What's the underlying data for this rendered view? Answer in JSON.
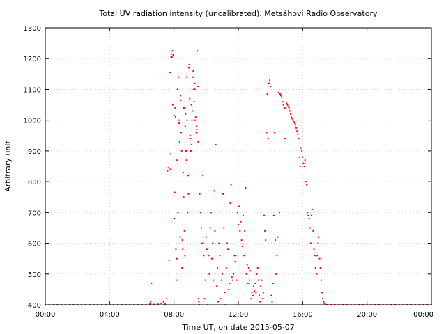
{
  "chart_data": {
    "type": "scatter",
    "title": "Total UV radiation intensity (uncalibrated). Metsähovi Radio Observatory",
    "xlabel": "Time UT, on date 2015-05-07",
    "ylabel": "Arbitrary unit",
    "xlim": [
      0,
      24
    ],
    "ylim": [
      400,
      1300
    ],
    "x_ticks": [
      {
        "value": 0,
        "label": "00:00"
      },
      {
        "value": 4,
        "label": "04:00"
      },
      {
        "value": 8,
        "label": "08:00"
      },
      {
        "value": 12,
        "label": "12:00"
      },
      {
        "value": 16,
        "label": "16:00"
      },
      {
        "value": 20,
        "label": "20:00"
      },
      {
        "value": 24,
        "label": "00:00"
      }
    ],
    "y_ticks": [
      400,
      500,
      600,
      700,
      800,
      900,
      1000,
      1100,
      1200,
      1300
    ],
    "grid": true,
    "marker_color": "#ff0000",
    "series": [
      {
        "points": [
          [
            0.0,
            400
          ],
          [
            0.25,
            400
          ],
          [
            0.5,
            400
          ],
          [
            0.75,
            400
          ],
          [
            1.0,
            400
          ],
          [
            1.25,
            400
          ],
          [
            1.5,
            400
          ],
          [
            1.75,
            400
          ],
          [
            2.0,
            400
          ],
          [
            2.25,
            400
          ],
          [
            2.5,
            400
          ],
          [
            2.75,
            400
          ],
          [
            3.0,
            400
          ],
          [
            3.25,
            400
          ],
          [
            3.5,
            400
          ],
          [
            3.75,
            400
          ],
          [
            4.0,
            400
          ],
          [
            4.25,
            400
          ],
          [
            4.5,
            400
          ],
          [
            4.75,
            400
          ],
          [
            5.0,
            400
          ],
          [
            5.25,
            400
          ],
          [
            5.5,
            400
          ],
          [
            5.75,
            400
          ],
          [
            6.0,
            400
          ],
          [
            6.25,
            400
          ],
          [
            6.5,
            402
          ],
          [
            6.55,
            410
          ],
          [
            6.6,
            470
          ],
          [
            6.75,
            401
          ],
          [
            7.0,
            402
          ],
          [
            7.2,
            405
          ],
          [
            7.35,
            410
          ],
          [
            7.45,
            402
          ],
          [
            7.55,
            420
          ],
          [
            7.6,
            835
          ],
          [
            7.65,
            845
          ],
          [
            7.7,
            545
          ],
          [
            7.75,
            1155
          ],
          [
            7.78,
            840
          ],
          [
            7.8,
            890
          ],
          [
            7.82,
            1205
          ],
          [
            7.85,
            1215
          ],
          [
            7.87,
            1205
          ],
          [
            7.9,
            1225
          ],
          [
            7.92,
            1050
          ],
          [
            7.95,
            1210
          ],
          [
            7.97,
            1212
          ],
          [
            8.0,
            1015
          ],
          [
            8.02,
            680
          ],
          [
            8.05,
            765
          ],
          [
            8.08,
            1040
          ],
          [
            8.1,
            1010
          ],
          [
            8.12,
            580
          ],
          [
            8.15,
            480
          ],
          [
            8.18,
            550
          ],
          [
            8.2,
            870
          ],
          [
            8.22,
            1100
          ],
          [
            8.25,
            700
          ],
          [
            8.28,
            1140
          ],
          [
            8.3,
            1000
          ],
          [
            8.32,
            990
          ],
          [
            8.35,
            930
          ],
          [
            8.38,
            620
          ],
          [
            8.4,
            1080
          ],
          [
            8.42,
            1065
          ],
          [
            8.45,
            960
          ],
          [
            8.48,
            900
          ],
          [
            8.5,
            520
          ],
          [
            8.52,
            610
          ],
          [
            8.55,
            580
          ],
          [
            8.58,
            830
          ],
          [
            8.6,
            750
          ],
          [
            8.62,
            1040
          ],
          [
            8.65,
            640
          ],
          [
            8.68,
            560
          ],
          [
            8.7,
            980
          ],
          [
            8.72,
            1020
          ],
          [
            8.75,
            900
          ],
          [
            8.78,
            870
          ],
          [
            8.8,
            1140
          ],
          [
            8.82,
            1000
          ],
          [
            8.85,
            700
          ],
          [
            8.88,
            820
          ],
          [
            8.9,
            760
          ],
          [
            8.92,
            1170
          ],
          [
            8.95,
            1180
          ],
          [
            8.98,
            1070
          ],
          [
            9.0,
            950
          ],
          [
            9.02,
            940
          ],
          [
            9.05,
            900
          ],
          [
            9.08,
            1050
          ],
          [
            9.1,
            920
          ],
          [
            9.12,
            1000
          ],
          [
            9.15,
            1030
          ],
          [
            9.18,
            1140
          ],
          [
            9.2,
            1160
          ],
          [
            9.22,
            1100
          ],
          [
            9.25,
            1060
          ],
          [
            9.28,
            1120
          ],
          [
            9.3,
            1100
          ],
          [
            9.32,
            1000
          ],
          [
            9.35,
            1010
          ],
          [
            9.38,
            960
          ],
          [
            9.4,
            980
          ],
          [
            9.42,
            970
          ],
          [
            9.45,
            1225
          ],
          [
            9.48,
            1110
          ],
          [
            9.5,
            930
          ],
          [
            9.52,
            420
          ],
          [
            9.55,
            410
          ],
          [
            9.58,
            400
          ],
          [
            9.6,
            760
          ],
          [
            9.65,
            700
          ],
          [
            9.7,
            650
          ],
          [
            9.75,
            600
          ],
          [
            9.8,
            820
          ],
          [
            9.85,
            560
          ],
          [
            9.9,
            420
          ],
          [
            9.95,
            480
          ],
          [
            10.0,
            620
          ],
          [
            10.05,
            580
          ],
          [
            10.1,
            400
          ],
          [
            10.15,
            560
          ],
          [
            10.2,
            500
          ],
          [
            10.25,
            650
          ],
          [
            10.3,
            700
          ],
          [
            10.35,
            550
          ],
          [
            10.4,
            600
          ],
          [
            10.45,
            480
          ],
          [
            10.5,
            770
          ],
          [
            10.55,
            640
          ],
          [
            10.6,
            920
          ],
          [
            10.65,
            460
          ],
          [
            10.7,
            520
          ],
          [
            10.75,
            410
          ],
          [
            10.8,
            600
          ],
          [
            10.85,
            560
          ],
          [
            10.9,
            420
          ],
          [
            10.95,
            480
          ],
          [
            11.0,
            500
          ],
          [
            11.05,
            760
          ],
          [
            11.1,
            650
          ],
          [
            11.15,
            440
          ],
          [
            11.2,
            400
          ],
          [
            11.25,
            520
          ],
          [
            11.3,
            600
          ],
          [
            11.35,
            580
          ],
          [
            11.4,
            450
          ],
          [
            11.45,
            470
          ],
          [
            11.5,
            730
          ],
          [
            11.55,
            790
          ],
          [
            11.6,
            490
          ],
          [
            11.65,
            480
          ],
          [
            11.7,
            500
          ],
          [
            11.75,
            560
          ],
          [
            11.8,
            540
          ],
          [
            11.85,
            560
          ],
          [
            11.9,
            480
          ],
          [
            11.95,
            700
          ],
          [
            12.0,
            660
          ],
          [
            12.05,
            720
          ],
          [
            12.1,
            640
          ],
          [
            12.15,
            670
          ],
          [
            12.2,
            610
          ],
          [
            12.25,
            590
          ],
          [
            12.3,
            690
          ],
          [
            12.35,
            560
          ],
          [
            12.4,
            640
          ],
          [
            12.45,
            780
          ],
          [
            12.5,
            500
          ],
          [
            12.55,
            530
          ],
          [
            12.6,
            470
          ],
          [
            12.65,
            520
          ],
          [
            12.7,
            480
          ],
          [
            12.75,
            510
          ],
          [
            12.8,
            420
          ],
          [
            12.85,
            440
          ],
          [
            12.9,
            430
          ],
          [
            12.95,
            460
          ],
          [
            13.0,
            445
          ],
          [
            13.05,
            470
          ],
          [
            13.1,
            440
          ],
          [
            13.15,
            500
          ],
          [
            13.2,
            520
          ],
          [
            13.25,
            480
          ],
          [
            13.3,
            430
          ],
          [
            13.35,
            410
          ],
          [
            13.4,
            460
          ],
          [
            13.45,
            480
          ],
          [
            13.5,
            420
          ],
          [
            13.55,
            440
          ],
          [
            13.6,
            690
          ],
          [
            13.65,
            640
          ],
          [
            13.7,
            610
          ],
          [
            13.75,
            960
          ],
          [
            13.8,
            1085
          ],
          [
            13.85,
            940
          ],
          [
            13.9,
            1120
          ],
          [
            13.95,
            1130
          ],
          [
            14.0,
            1110
          ],
          [
            14.05,
            430
          ],
          [
            14.1,
            410
          ],
          [
            14.15,
            470
          ],
          [
            14.2,
            690
          ],
          [
            14.25,
            960
          ],
          [
            14.3,
            610
          ],
          [
            14.35,
            500
          ],
          [
            14.4,
            560
          ],
          [
            14.45,
            620
          ],
          [
            14.5,
            1090
          ],
          [
            14.55,
            700
          ],
          [
            14.6,
            1085
          ],
          [
            14.65,
            1080
          ],
          [
            14.7,
            1075
          ],
          [
            14.75,
            1060
          ],
          [
            14.8,
            1050
          ],
          [
            14.85,
            1040
          ],
          [
            14.9,
            940
          ],
          [
            14.95,
            1040
          ],
          [
            15.0,
            1055
          ],
          [
            15.05,
            1050
          ],
          [
            15.1,
            1045
          ],
          [
            15.15,
            1040
          ],
          [
            15.2,
            1030
          ],
          [
            15.25,
            1020
          ],
          [
            15.3,
            1010
          ],
          [
            15.35,
            1005
          ],
          [
            15.4,
            1000
          ],
          [
            15.45,
            995
          ],
          [
            15.5,
            990
          ],
          [
            15.55,
            985
          ],
          [
            15.6,
            975
          ],
          [
            15.65,
            965
          ],
          [
            15.7,
            955
          ],
          [
            15.75,
            940
          ],
          [
            15.8,
            880
          ],
          [
            15.85,
            850
          ],
          [
            15.9,
            910
          ],
          [
            15.95,
            900
          ],
          [
            16.0,
            880
          ],
          [
            16.05,
            860
          ],
          [
            16.1,
            850
          ],
          [
            16.15,
            870
          ],
          [
            16.2,
            800
          ],
          [
            16.25,
            790
          ],
          [
            16.3,
            700
          ],
          [
            16.35,
            690
          ],
          [
            16.4,
            680
          ],
          [
            16.45,
            650
          ],
          [
            16.5,
            600
          ],
          [
            16.55,
            690
          ],
          [
            16.6,
            710
          ],
          [
            16.65,
            640
          ],
          [
            16.7,
            580
          ],
          [
            16.75,
            560
          ],
          [
            16.8,
            520
          ],
          [
            16.85,
            500
          ],
          [
            16.9,
            560
          ],
          [
            16.95,
            600
          ],
          [
            17.0,
            620
          ],
          [
            17.05,
            550
          ],
          [
            17.1,
            520
          ],
          [
            17.15,
            480
          ],
          [
            17.2,
            440
          ],
          [
            17.25,
            420
          ],
          [
            17.3,
            410
          ],
          [
            17.35,
            405
          ],
          [
            17.4,
            402
          ],
          [
            17.5,
            400
          ],
          [
            17.75,
            400
          ],
          [
            18.0,
            400
          ],
          [
            18.25,
            400
          ],
          [
            18.5,
            400
          ],
          [
            18.75,
            400
          ],
          [
            19.0,
            400
          ],
          [
            19.25,
            400
          ],
          [
            19.5,
            400
          ],
          [
            19.75,
            400
          ],
          [
            20.0,
            400
          ],
          [
            20.25,
            400
          ],
          [
            20.5,
            400
          ],
          [
            20.75,
            400
          ],
          [
            21.0,
            400
          ],
          [
            21.25,
            400
          ],
          [
            21.5,
            400
          ],
          [
            21.75,
            400
          ],
          [
            22.0,
            400
          ],
          [
            22.25,
            400
          ],
          [
            22.5,
            400
          ],
          [
            22.75,
            400
          ],
          [
            23.0,
            400
          ],
          [
            23.25,
            400
          ],
          [
            23.5,
            400
          ],
          [
            23.75,
            400
          ],
          [
            24.0,
            400
          ]
        ]
      }
    ]
  }
}
